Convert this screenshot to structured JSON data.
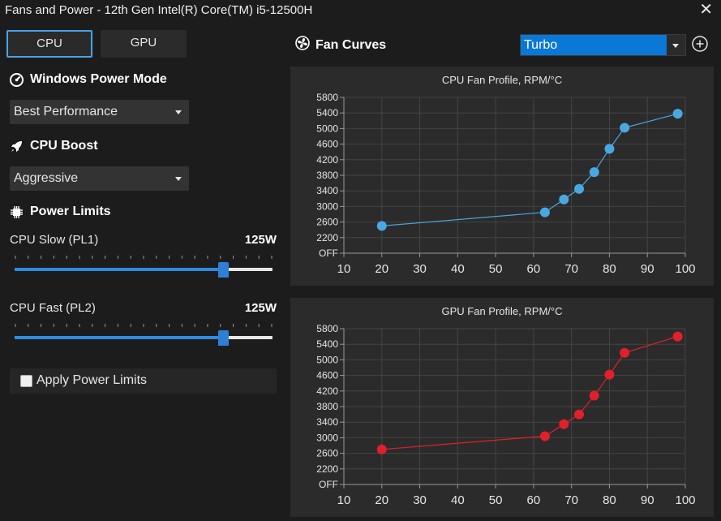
{
  "window": {
    "title": "Fans and Power - 12th Gen Intel(R) Core(TM) i5-12500H",
    "close_glyph": "✕"
  },
  "tabs": [
    {
      "label": "CPU",
      "active": true
    },
    {
      "label": "GPU",
      "active": false
    }
  ],
  "power_mode": {
    "heading": "Windows Power Mode",
    "icon": "gauge-icon",
    "selected": "Best Performance"
  },
  "cpu_boost": {
    "heading": "CPU Boost",
    "icon": "rocket-icon",
    "selected": "Aggressive"
  },
  "power_limits": {
    "heading": "Power Limits",
    "icon": "chip-icon",
    "pl1": {
      "label": "CPU Slow (PL1)",
      "value": "125W",
      "level": 0.81
    },
    "pl2": {
      "label": "CPU Fast (PL2)",
      "value": "125W",
      "level": 0.81
    },
    "apply_label": "Apply Power Limits",
    "apply_checked": false
  },
  "fan_curves": {
    "heading": "Fan Curves",
    "icon": "fan-icon",
    "preset": "Turbo",
    "add_icon": "plus-circle-icon"
  },
  "colors": {
    "accent": "#0a78d7",
    "cpu_series": "#4aa8e0",
    "gpu_series": "#e0202a",
    "panel": "#2b2b2b",
    "background": "#1c1c1c"
  },
  "chart_data": [
    {
      "type": "line",
      "title": "CPU Fan Profile, RPM/°C",
      "x": [
        20,
        63,
        68,
        72,
        76,
        80,
        84,
        98
      ],
      "values": [
        2500,
        2850,
        3180,
        3450,
        3880,
        4480,
        5020,
        5380
      ],
      "xlim": [
        10,
        100
      ],
      "xticks": [
        "10",
        "20",
        "30",
        "40",
        "50",
        "60",
        "70",
        "80",
        "90",
        "100"
      ],
      "ylim": [
        1800,
        5800
      ],
      "yticks": [
        "OFF",
        "2200",
        "2600",
        "3000",
        "3400",
        "3800",
        "4200",
        "4600",
        "5000",
        "5400",
        "5800"
      ],
      "grid": true
    },
    {
      "type": "line",
      "title": "GPU Fan Profile, RPM/°C",
      "x": [
        20,
        63,
        68,
        72,
        76,
        80,
        84,
        98
      ],
      "values": [
        2700,
        3040,
        3350,
        3600,
        4080,
        4620,
        5180,
        5600
      ],
      "xlim": [
        10,
        100
      ],
      "xticks": [
        "10",
        "20",
        "30",
        "40",
        "50",
        "60",
        "70",
        "80",
        "90",
        "100"
      ],
      "ylim": [
        1800,
        5800
      ],
      "yticks": [
        "OFF",
        "2200",
        "2600",
        "3000",
        "3400",
        "3800",
        "4200",
        "4600",
        "5000",
        "5400",
        "5800"
      ],
      "grid": true
    }
  ]
}
